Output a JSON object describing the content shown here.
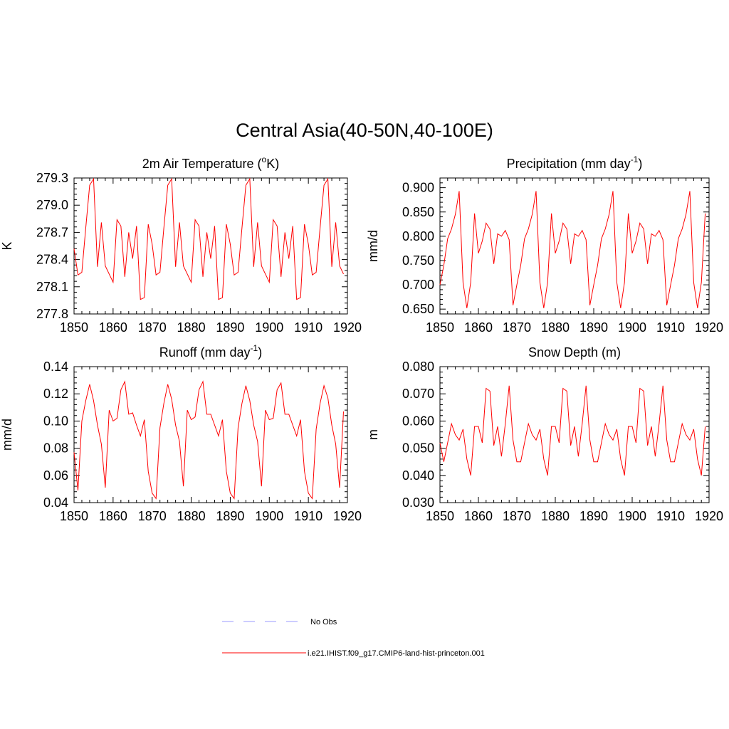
{
  "title": "Central Asia(40-50N,40-100E)",
  "colors": {
    "model_line": "#ff0000",
    "obs_line": "#9a9aff",
    "axis": "#000000"
  },
  "legend": [
    {
      "label": "No Obs",
      "style": "dashed",
      "color": "#9a9aff"
    },
    {
      "label": "i.e21.IHIST.f09_g17.CMIP6-land-hist-princeton.001",
      "style": "solid",
      "color": "#ff0000"
    }
  ],
  "chart_data": [
    {
      "type": "line",
      "title": "2m Air Temperature (",
      "title_sup": "o",
      "title_after": "K)",
      "ylabel": "K",
      "xlim": [
        1850,
        1920
      ],
      "ylim": [
        277.8,
        279.3
      ],
      "xticks": [
        "1850",
        "1860",
        "1870",
        "1880",
        "1890",
        "1900",
        "1910",
        "1920"
      ],
      "yticks": [
        "277.8",
        "278.1",
        "278.4",
        "278.7",
        "279.0",
        "279.3"
      ],
      "x_start": 1850,
      "series": [
        {
          "values": [
            278.52,
            278.23,
            278.26,
            278.75,
            279.22,
            279.29,
            278.32,
            278.81,
            278.33,
            278.24,
            278.15,
            278.84,
            278.77,
            278.21,
            278.7,
            278.41,
            278.77,
            277.96,
            277.98,
            278.79,
            278.57,
            278.23,
            278.26,
            278.75,
            279.22,
            279.29,
            278.32,
            278.81,
            278.33,
            278.24,
            278.15,
            278.84,
            278.77,
            278.21,
            278.7,
            278.41,
            278.77,
            277.96,
            277.98,
            278.79,
            278.57,
            278.23,
            278.26,
            278.75,
            279.22,
            279.29,
            278.32,
            278.81,
            278.33,
            278.24,
            278.15,
            278.84,
            278.77,
            278.21,
            278.7,
            278.41,
            278.77,
            277.96,
            277.98,
            278.79,
            278.57,
            278.23,
            278.26,
            278.75,
            279.22,
            279.29,
            278.32,
            278.81,
            278.33,
            278.24
          ]
        }
      ]
    },
    {
      "type": "line",
      "title": "Precipitation (mm day",
      "title_sup": "-1",
      "title_after": ")",
      "ylabel": "mm/d",
      "xlim": [
        1850,
        1920
      ],
      "ylim": [
        0.64,
        0.92
      ],
      "xticks": [
        "1850",
        "1860",
        "1870",
        "1880",
        "1890",
        "1900",
        "1910",
        "1920"
      ],
      "yticks": [
        "0.650",
        "0.700",
        "0.750",
        "0.800",
        "0.850",
        "0.900"
      ],
      "x_start": 1850,
      "series": [
        {
          "values": [
            0.7,
            0.74,
            0.795,
            0.815,
            0.845,
            0.893,
            0.705,
            0.652,
            0.705,
            0.847,
            0.765,
            0.79,
            0.827,
            0.815,
            0.743,
            0.805,
            0.8,
            0.812,
            0.793,
            0.658,
            0.7,
            0.74,
            0.795,
            0.815,
            0.845,
            0.893,
            0.705,
            0.652,
            0.705,
            0.847,
            0.765,
            0.79,
            0.827,
            0.815,
            0.743,
            0.805,
            0.8,
            0.812,
            0.793,
            0.658,
            0.7,
            0.74,
            0.795,
            0.815,
            0.845,
            0.893,
            0.705,
            0.652,
            0.705,
            0.847,
            0.765,
            0.79,
            0.827,
            0.815,
            0.743,
            0.805,
            0.8,
            0.812,
            0.793,
            0.658,
            0.7,
            0.74,
            0.795,
            0.815,
            0.845,
            0.893,
            0.705,
            0.652,
            0.705,
            0.847
          ]
        }
      ]
    },
    {
      "type": "line",
      "title": "Runoff (mm day",
      "title_sup": "-1",
      "title_after": ")",
      "ylabel": "mm/d",
      "xlim": [
        1850,
        1920
      ],
      "ylim": [
        0.04,
        0.14
      ],
      "xticks": [
        "1850",
        "1860",
        "1870",
        "1880",
        "1890",
        "1900",
        "1910",
        "1920"
      ],
      "yticks": [
        "0.04",
        "0.06",
        "0.08",
        "0.10",
        "0.12",
        "0.14"
      ],
      "x_start": 1850,
      "series": [
        {
          "values": [
            0.077,
            0.049,
            0.1,
            0.115,
            0.127,
            0.115,
            0.097,
            0.083,
            0.051,
            0.108,
            0.1,
            0.102,
            0.123,
            0.129,
            0.105,
            0.106,
            0.097,
            0.089,
            0.101,
            0.063,
            0.047,
            0.043,
            0.095,
            0.113,
            0.127,
            0.116,
            0.097,
            0.085,
            0.052,
            0.108,
            0.101,
            0.103,
            0.123,
            0.129,
            0.105,
            0.105,
            0.097,
            0.089,
            0.101,
            0.063,
            0.047,
            0.043,
            0.095,
            0.113,
            0.126,
            0.115,
            0.097,
            0.085,
            0.052,
            0.108,
            0.101,
            0.102,
            0.123,
            0.128,
            0.105,
            0.105,
            0.097,
            0.089,
            0.101,
            0.063,
            0.047,
            0.043,
            0.094,
            0.113,
            0.126,
            0.117,
            0.097,
            0.083,
            0.051,
            0.107
          ]
        }
      ]
    },
    {
      "type": "line",
      "title": "Snow Depth (m)",
      "ylabel": "m",
      "xlim": [
        1850,
        1920
      ],
      "ylim": [
        0.03,
        0.08
      ],
      "xticks": [
        "1850",
        "1860",
        "1870",
        "1880",
        "1890",
        "1900",
        "1910",
        "1920"
      ],
      "yticks": [
        "0.030",
        "0.040",
        "0.050",
        "0.060",
        "0.070",
        "0.080"
      ],
      "x_start": 1850,
      "series": [
        {
          "values": [
            0.052,
            0.045,
            0.052,
            0.059,
            0.055,
            0.053,
            0.057,
            0.046,
            0.04,
            0.058,
            0.058,
            0.052,
            0.072,
            0.071,
            0.051,
            0.058,
            0.047,
            0.059,
            0.073,
            0.053,
            0.045,
            0.045,
            0.052,
            0.059,
            0.055,
            0.053,
            0.057,
            0.046,
            0.04,
            0.058,
            0.058,
            0.052,
            0.072,
            0.071,
            0.051,
            0.058,
            0.047,
            0.059,
            0.073,
            0.053,
            0.045,
            0.045,
            0.052,
            0.059,
            0.055,
            0.053,
            0.057,
            0.046,
            0.04,
            0.058,
            0.058,
            0.052,
            0.072,
            0.071,
            0.051,
            0.058,
            0.047,
            0.059,
            0.073,
            0.053,
            0.045,
            0.045,
            0.052,
            0.059,
            0.055,
            0.053,
            0.057,
            0.046,
            0.04,
            0.058
          ]
        }
      ]
    }
  ]
}
